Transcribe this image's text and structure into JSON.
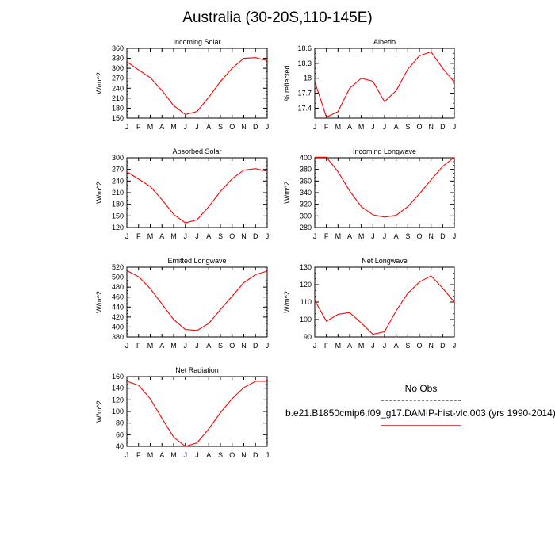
{
  "title": "Australia (30-20S,110-145E)",
  "legend": {
    "obs_label": "No Obs",
    "model_label": "b.e21.B1850cmip6.f09_g17.DAMIP-hist-vlc.003 (yrs 1990-2014)",
    "obs_color": "#6f6fe6",
    "model_color": "#ff0000"
  },
  "chart_data": [
    {
      "type": "line",
      "title": "Incoming Solar",
      "ylabel": "W/m^2",
      "categories": [
        "J",
        "F",
        "M",
        "A",
        "M",
        "J",
        "J",
        "A",
        "S",
        "O",
        "N",
        "D",
        "J"
      ],
      "ylim": [
        150,
        360
      ],
      "yticks": [
        150,
        180,
        210,
        240,
        270,
        300,
        330,
        360
      ],
      "series": [
        {
          "values": [
            320,
            295,
            272,
            233,
            188,
            161,
            170,
            213,
            260,
            300,
            330,
            332,
            323
          ]
        }
      ]
    },
    {
      "type": "line",
      "title": "Albedo",
      "ylabel": "% reflected",
      "categories": [
        "J",
        "F",
        "M",
        "A",
        "M",
        "J",
        "J",
        "A",
        "S",
        "O",
        "N",
        "D",
        "J"
      ],
      "ylim": [
        17.2,
        18.6
      ],
      "yticks": [
        17.4,
        17.7,
        18.0,
        18.3,
        18.6
      ],
      "series": [
        {
          "values": [
            17.93,
            17.22,
            17.33,
            17.8,
            18.0,
            17.94,
            17.53,
            17.75,
            18.18,
            18.45,
            18.53,
            18.2,
            17.92
          ]
        }
      ]
    },
    {
      "type": "line",
      "title": "Absorbed Solar",
      "ylabel": "W/m^2",
      "categories": [
        "J",
        "F",
        "M",
        "A",
        "M",
        "J",
        "J",
        "A",
        "S",
        "O",
        "N",
        "D",
        "J"
      ],
      "ylim": [
        120,
        300
      ],
      "yticks": [
        120,
        150,
        180,
        210,
        240,
        270,
        300
      ],
      "series": [
        {
          "values": [
            264,
            245,
            226,
            192,
            154,
            132,
            140,
            174,
            213,
            246,
            268,
            272,
            265
          ]
        }
      ]
    },
    {
      "type": "line",
      "title": "Incoming Longwave",
      "ylabel": "W/m^2",
      "categories": [
        "J",
        "F",
        "M",
        "A",
        "M",
        "J",
        "J",
        "A",
        "S",
        "O",
        "N",
        "D",
        "J"
      ],
      "ylim": [
        280,
        400
      ],
      "yticks": [
        280,
        300,
        320,
        340,
        360,
        380,
        400
      ],
      "series": [
        {
          "values": [
            401,
            401,
            376,
            343,
            316,
            302,
            298,
            301,
            316,
            338,
            362,
            385,
            401
          ]
        }
      ]
    },
    {
      "type": "line",
      "title": "Emitted Longwave",
      "ylabel": "W/m^2",
      "categories": [
        "J",
        "F",
        "M",
        "A",
        "M",
        "J",
        "J",
        "A",
        "S",
        "O",
        "N",
        "D",
        "J"
      ],
      "ylim": [
        380,
        520
      ],
      "yticks": [
        380,
        400,
        420,
        440,
        460,
        480,
        500,
        520
      ],
      "series": [
        {
          "values": [
            513,
            501,
            477,
            446,
            415,
            395,
            393,
            407,
            435,
            462,
            489,
            505,
            512
          ]
        }
      ]
    },
    {
      "type": "line",
      "title": "Net Longwave",
      "ylabel": "W/m^2",
      "categories": [
        "J",
        "F",
        "M",
        "A",
        "M",
        "J",
        "J",
        "A",
        "S",
        "O",
        "N",
        "D",
        "J"
      ],
      "ylim": [
        90,
        130
      ],
      "yticks": [
        90,
        100,
        110,
        120,
        130
      ],
      "series": [
        {
          "values": [
            111,
            99,
            103,
            104,
            98,
            91.5,
            93,
            105,
            115,
            121.5,
            125,
            118,
            110
          ]
        }
      ]
    },
    {
      "type": "line",
      "title": "Net Radiation",
      "ylabel": "W/m^2",
      "categories": [
        "J",
        "F",
        "M",
        "A",
        "M",
        "J",
        "J",
        "A",
        "S",
        "O",
        "N",
        "D",
        "J"
      ],
      "ylim": [
        40,
        160
      ],
      "yticks": [
        40,
        60,
        80,
        100,
        120,
        140,
        160
      ],
      "series": [
        {
          "values": [
            152,
            145,
            122,
            88,
            56,
            40,
            46,
            70,
            98,
            122,
            141,
            152,
            152
          ]
        }
      ]
    }
  ]
}
